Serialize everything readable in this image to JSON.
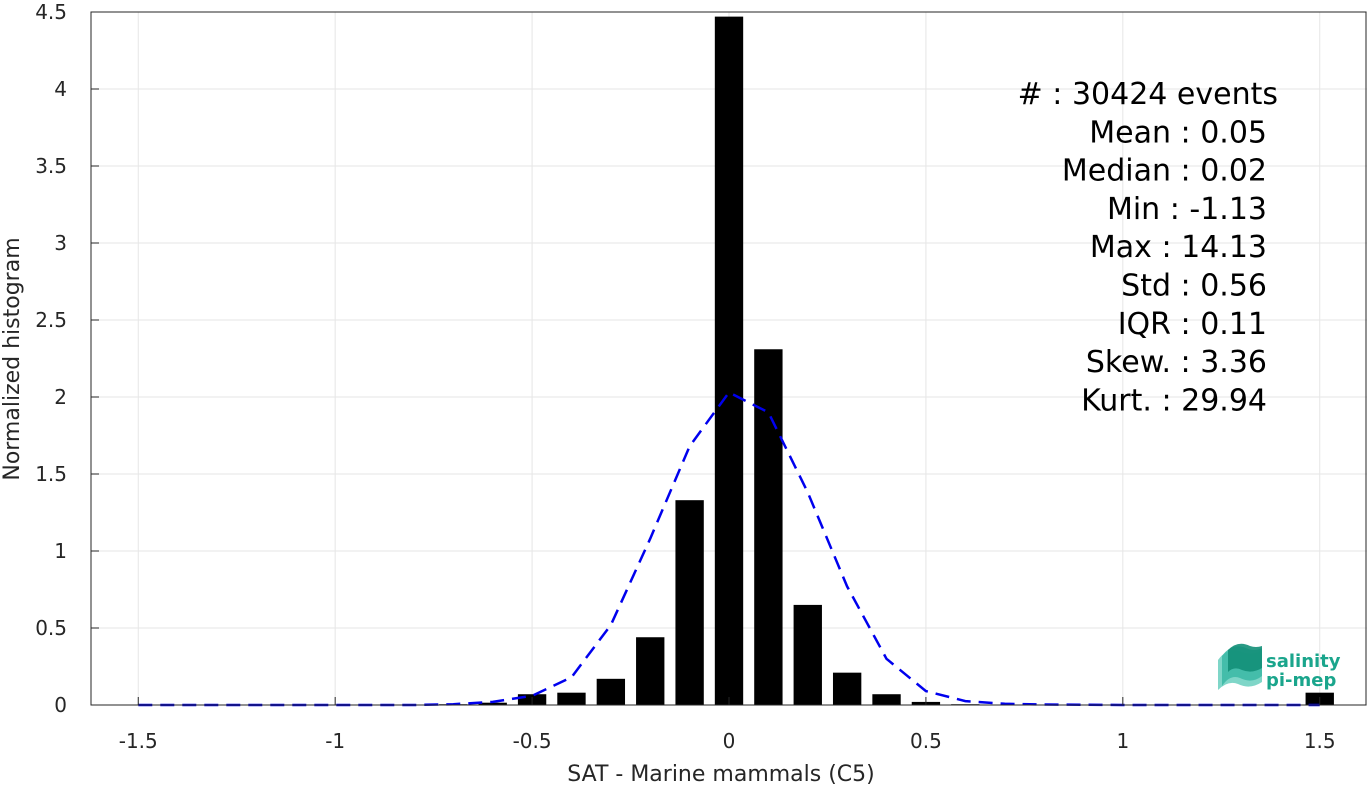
{
  "chart_data": {
    "type": "bar",
    "xlabel": "SAT - Marine mammals (C5)",
    "ylabel": "Normalized histogram",
    "xlim": [
      -1.62,
      1.62
    ],
    "ylim": [
      0,
      4.5
    ],
    "xticks": [
      -1.5,
      -1,
      -0.5,
      0,
      0.5,
      1,
      1.5
    ],
    "xtick_labels": [
      "-1.5",
      "-1",
      "-0.5",
      "0",
      "0.5",
      "1",
      "1.5"
    ],
    "yticks": [
      0,
      0.5,
      1,
      1.5,
      2,
      2.5,
      3,
      3.5,
      4,
      4.5
    ],
    "ytick_labels": [
      "0",
      "0.5",
      "1",
      "1.5",
      "2",
      "2.5",
      "3",
      "3.5",
      "4",
      "4.5"
    ],
    "grid": true,
    "bar_color": "#000000",
    "histogram": {
      "bin_centers": [
        -0.7,
        -0.6,
        -0.5,
        -0.4,
        -0.3,
        -0.2,
        -0.1,
        0.0,
        0.1,
        0.2,
        0.3,
        0.4,
        0.5,
        0.6,
        1.5
      ],
      "values": [
        0.005,
        0.015,
        0.07,
        0.08,
        0.17,
        0.44,
        1.33,
        4.47,
        2.31,
        0.65,
        0.21,
        0.07,
        0.02,
        0.005,
        0.08
      ]
    },
    "fit_curve": {
      "color": "#0000ee",
      "style": "dashed",
      "x": [
        -1.5,
        -1.2,
        -1.0,
        -0.8,
        -0.7,
        -0.6,
        -0.5,
        -0.4,
        -0.3,
        -0.2,
        -0.1,
        0.0,
        0.1,
        0.2,
        0.3,
        0.4,
        0.5,
        0.6,
        0.7,
        0.8,
        1.0,
        1.2,
        1.5
      ],
      "y": [
        0.0,
        0.0,
        0.0,
        0.0,
        0.005,
        0.02,
        0.06,
        0.18,
        0.52,
        1.08,
        1.68,
        2.03,
        1.9,
        1.38,
        0.77,
        0.3,
        0.09,
        0.025,
        0.008,
        0.003,
        0.0,
        0.0,
        0.0
      ]
    }
  },
  "stats": {
    "lines": [
      "#  : 30424 events",
      "Mean : 0.05",
      "Median : 0.02",
      "Min : -1.13",
      "Max : 14.13",
      "Std : 0.56",
      "IQR : 0.11",
      "Skew. : 3.36",
      "Kurt. : 29.94"
    ]
  },
  "logo": {
    "line1": "salinity",
    "line2": "pi-mep"
  }
}
